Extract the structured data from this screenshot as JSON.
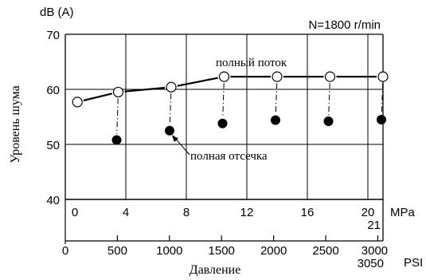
{
  "chart_data": {
    "type": "line",
    "top_left_unit": "dB (A)",
    "speed_label": "N=1800 r/min",
    "ylabel": "Уровень шума",
    "xlabel": "Давление",
    "ylim": [
      40,
      70
    ],
    "y_ticks": [
      40,
      50,
      60,
      70
    ],
    "x_mpa_range": [
      0,
      21
    ],
    "x_mpa_ticks": [
      "0",
      "4",
      "8",
      "12",
      "16",
      "20",
      "21"
    ],
    "x_mpa_unit": "MPa",
    "x_psi_ticks": [
      "0",
      "500",
      "1000",
      "1500",
      "2000",
      "2500",
      "3000",
      "3050"
    ],
    "x_psi_unit": "PSI",
    "grid": true,
    "annotations": {
      "full_flow": "полный поток",
      "full_cutoff": "полная отсечка"
    },
    "series": [
      {
        "name": "полный поток",
        "marker": "open-circle",
        "x": [
          0.8,
          3.5,
          7.0,
          10.5,
          14.0,
          17.5,
          21.0
        ],
        "y": [
          57.7,
          59.5,
          60.4,
          62.3,
          62.3,
          62.3,
          62.3
        ]
      },
      {
        "name": "полная отсечка",
        "marker": "filled-circle",
        "x": [
          3.5,
          7.0,
          10.5,
          14.0,
          17.5,
          21.0
        ],
        "y": [
          50.8,
          52.5,
          53.8,
          54.4,
          54.2,
          54.5
        ]
      }
    ]
  }
}
